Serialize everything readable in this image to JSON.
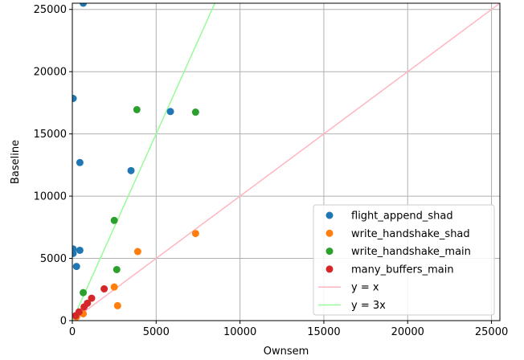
{
  "chart_data": {
    "type": "scatter",
    "title": "",
    "xlabel": "Ownsem",
    "ylabel": "Baseline",
    "xlim": [
      0,
      25500
    ],
    "ylim": [
      0,
      25500
    ],
    "xticks": [
      0,
      5000,
      10000,
      15000,
      20000,
      25000
    ],
    "yticks": [
      0,
      5000,
      10000,
      15000,
      20000,
      25000
    ],
    "grid": true,
    "legend_position": "lower-right",
    "series": [
      {
        "name": "flight_append_shad",
        "color": "#1f77b4",
        "points": [
          [
            650,
            25500
          ],
          [
            50,
            17850
          ],
          [
            5850,
            16800
          ],
          [
            450,
            12700
          ],
          [
            3500,
            12050
          ],
          [
            50,
            5750
          ],
          [
            450,
            5650
          ],
          [
            250,
            4350
          ],
          [
            50,
            5400
          ]
        ]
      },
      {
        "name": "write_handshake_shad",
        "color": "#ff7f0e",
        "points": [
          [
            7350,
            7000
          ],
          [
            3900,
            5550
          ],
          [
            2500,
            2700
          ],
          [
            2700,
            1200
          ],
          [
            650,
            550
          ],
          [
            250,
            300
          ]
        ]
      },
      {
        "name": "write_handshake_main",
        "color": "#2ca02c",
        "points": [
          [
            3850,
            16950
          ],
          [
            7350,
            16750
          ],
          [
            2500,
            8050
          ],
          [
            2650,
            4100
          ],
          [
            650,
            2250
          ]
        ]
      },
      {
        "name": "many_buffers_main",
        "color": "#d62728",
        "points": [
          [
            1900,
            2550
          ],
          [
            1150,
            1800
          ],
          [
            900,
            1400
          ],
          [
            700,
            1100
          ],
          [
            400,
            700
          ],
          [
            200,
            400
          ]
        ]
      }
    ],
    "lines": [
      {
        "name": "y = x",
        "slope": 1,
        "color": "#ffb6c1"
      },
      {
        "name": "y = 3x",
        "slope": 3,
        "color": "#98fb98"
      }
    ]
  }
}
